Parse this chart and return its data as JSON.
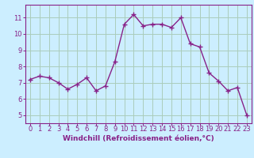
{
  "x": [
    0,
    1,
    2,
    3,
    4,
    5,
    6,
    7,
    8,
    9,
    10,
    11,
    12,
    13,
    14,
    15,
    16,
    17,
    18,
    19,
    20,
    21,
    22,
    23
  ],
  "y": [
    7.2,
    7.4,
    7.3,
    7.0,
    6.6,
    6.9,
    7.3,
    6.5,
    6.8,
    8.3,
    10.6,
    11.2,
    10.5,
    10.6,
    10.6,
    10.4,
    11.0,
    9.4,
    9.2,
    7.6,
    7.1,
    6.5,
    6.7,
    5.0
  ],
  "line_color": "#882288",
  "marker": "+",
  "marker_size": 4,
  "line_width": 1.0,
  "xlabel": "Windchill (Refroidissement éolien,°C)",
  "xlabel_fontsize": 6.5,
  "ylabel_values": [
    5,
    6,
    7,
    8,
    9,
    10,
    11
  ],
  "xlim": [
    -0.5,
    23.5
  ],
  "ylim": [
    4.5,
    11.8
  ],
  "bg_color": "#cceeff",
  "grid_color": "#aaccbb",
  "tick_fontsize": 6.0,
  "xtick_labels": [
    "0",
    "1",
    "2",
    "3",
    "4",
    "5",
    "6",
    "7",
    "8",
    "9",
    "10",
    "11",
    "12",
    "13",
    "14",
    "15",
    "16",
    "17",
    "18",
    "19",
    "20",
    "21",
    "22",
    "23"
  ]
}
